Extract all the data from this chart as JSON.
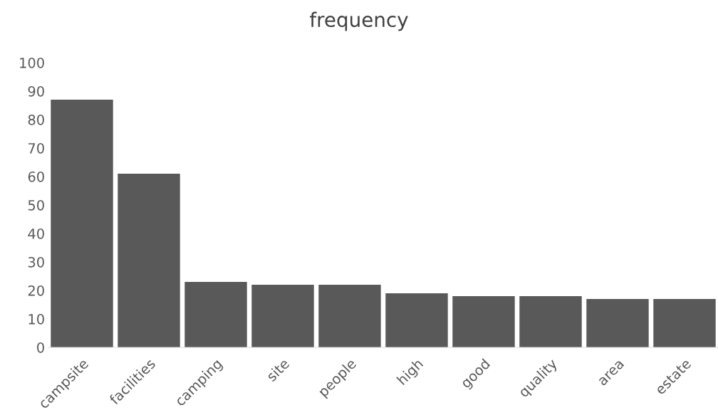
{
  "chart_data": {
    "type": "bar",
    "title": "frequency",
    "categories": [
      "campsite",
      "facilities",
      "camping",
      "site",
      "people",
      "high",
      "good",
      "quality",
      "area",
      "estate"
    ],
    "values": [
      87,
      61,
      23,
      22,
      22,
      19,
      18,
      18,
      17,
      17
    ],
    "color": "#595959",
    "ylim": [
      0,
      100
    ],
    "yticks": [
      0,
      10,
      20,
      30,
      40,
      50,
      60,
      70,
      80,
      90,
      100
    ],
    "grid": false,
    "legend": false
  }
}
